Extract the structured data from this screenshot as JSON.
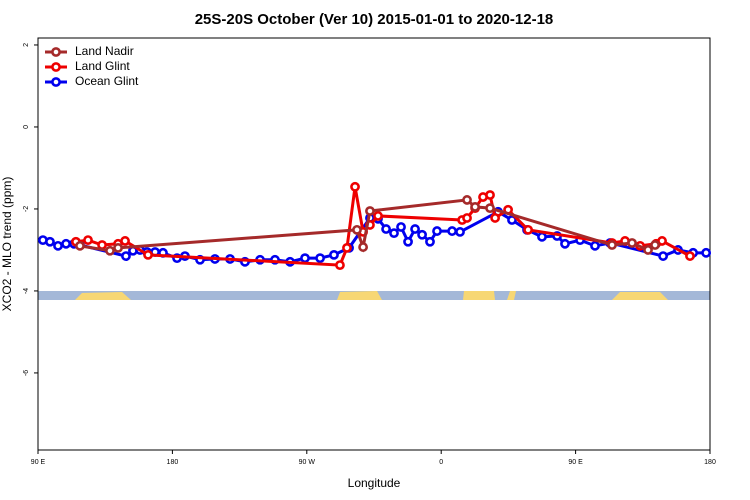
{
  "chart_data": {
    "type": "line",
    "title": "25S-20S October (Ver 10)   2015-01-01 to 2020-12-18",
    "xlabel": "Longitude",
    "ylabel": "XCO2 - MLO trend (ppm)",
    "xlim": [
      90,
      540
    ],
    "ylim": [
      -7.88,
      2.17
    ],
    "xticks": [
      {
        "value": 90,
        "label": "90 E"
      },
      180,
      {
        "value": 270,
        "label": "90 W"
      },
      {
        "value": 360,
        "label": "0"
      },
      {
        "value": 450,
        "label": "90 E"
      },
      {
        "value": 540,
        "label": "180"
      }
    ],
    "yticks": [
      2,
      0,
      -2,
      -4,
      -6
    ],
    "legend": "upper left",
    "series": [
      {
        "name": "Land Nadir",
        "color": "#a52a2a",
        "x": [
          118.1,
          138.2,
          143.6,
          303.6,
          307.7,
          312.3,
          377.3,
          382.7,
          392.7,
          474.4,
          487.8,
          498.5,
          503.2
        ],
        "values": [
          -2.9,
          -3.02,
          -2.95,
          -2.51,
          -2.93,
          -2.05,
          -1.78,
          -1.95,
          -1.98,
          -2.88,
          -2.83,
          -3.0,
          -2.88
        ]
      },
      {
        "name": "Land Glint",
        "color": "#ee0000",
        "x": [
          115.4,
          123.5,
          132.9,
          143.6,
          148.3,
          163.7,
          292.2,
          296.9,
          302.3,
          307.7,
          312.3,
          317.7,
          374,
          377.3,
          382.7,
          388,
          392.7,
          396.1,
          404.8,
          418.2,
          474.4,
          483.1,
          493.2,
          503.9,
          507.9,
          526.6
        ],
        "values": [
          -2.8,
          -2.76,
          -2.88,
          -2.85,
          -2.78,
          -3.12,
          -3.37,
          -2.95,
          -1.46,
          -2.56,
          -2.39,
          -2.17,
          -2.27,
          -2.22,
          -1.98,
          -1.71,
          -1.66,
          -2.22,
          -2.02,
          -2.51,
          -2.83,
          -2.78,
          -2.9,
          -2.85,
          -2.78,
          -3.15
        ]
      },
      {
        "name": "Ocean Glint",
        "color": "#0000ee",
        "x": [
          93.3,
          98,
          103.4,
          108.8,
          114.1,
          118.1,
          148.9,
          153.6,
          158.3,
          163,
          168.4,
          173.7,
          183.1,
          188.4,
          198.5,
          208.5,
          218.6,
          228.6,
          238.7,
          248.7,
          258.8,
          268.8,
          278.9,
          288.2,
          298.3,
          312.3,
          317.7,
          323.1,
          328.4,
          333.1,
          337.8,
          342.5,
          347.2,
          352.5,
          357.2,
          367.3,
          372.6,
          398.1,
          407.4,
          417.5,
          427.5,
          437.6,
          442.9,
          453,
          463,
          473.1,
          508.6,
          518.6,
          528.7,
          537.4
        ],
        "values": [
          -2.76,
          -2.8,
          -2.9,
          -2.85,
          -2.85,
          -2.88,
          -3.15,
          -3.02,
          -3.0,
          -3.05,
          -3.05,
          -3.07,
          -3.2,
          -3.15,
          -3.24,
          -3.22,
          -3.22,
          -3.29,
          -3.24,
          -3.24,
          -3.29,
          -3.2,
          -3.2,
          -3.12,
          -2.95,
          -2.22,
          -2.24,
          -2.49,
          -2.59,
          -2.44,
          -2.8,
          -2.49,
          -2.63,
          -2.8,
          -2.54,
          -2.54,
          -2.56,
          -2.07,
          -2.27,
          -2.51,
          -2.68,
          -2.66,
          -2.85,
          -2.76,
          -2.9,
          -2.83,
          -3.15,
          -3.0,
          -3.07,
          -3.07
        ]
      }
    ]
  }
}
